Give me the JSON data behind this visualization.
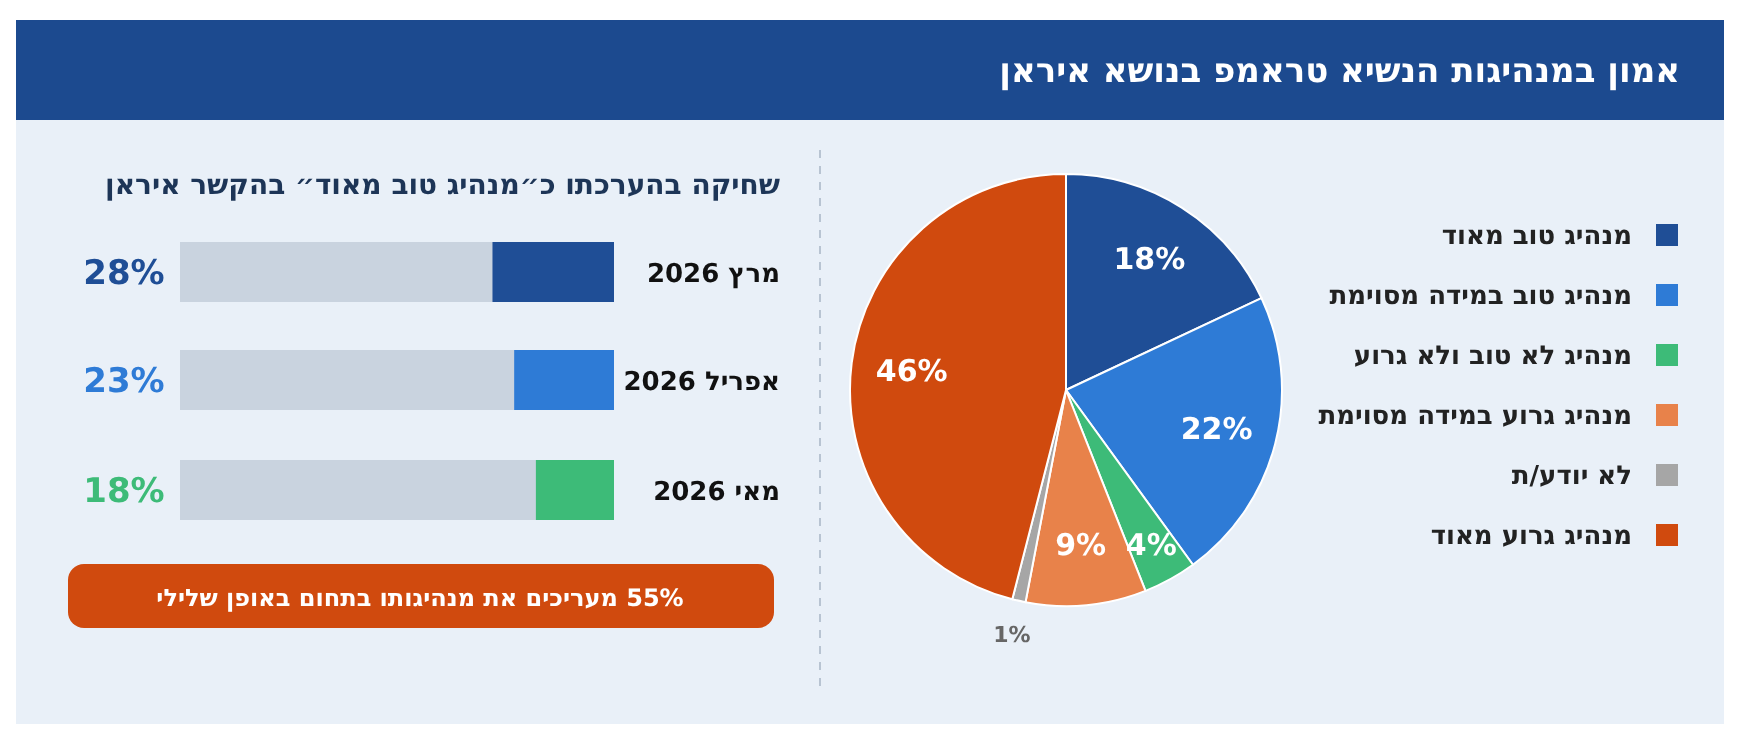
{
  "chart_data": [
    {
      "type": "bar",
      "orientation": "horizontal",
      "title": "שחיקה בהערכתו כ״מנהיג טוב מאוד״ בהקשר איראן",
      "categories": [
        "מרץ 2026",
        "אפריל 2026",
        "מאי 2026"
      ],
      "values": [
        28,
        23,
        18
      ],
      "colors": [
        "#1f4e96",
        "#2e7bd6",
        "#3dbb78"
      ],
      "value_labels": [
        "28%",
        "23%",
        "18%"
      ],
      "xlim": [
        100,
        0
      ],
      "tick_labels": "y",
      "annotations": [
        "55% מעריכים את מנהיגותו בתחום באופן שלילי"
      ]
    },
    {
      "type": "pie",
      "title": "אמון במנהיגות הנשיא טראמפ בנושא איראן",
      "categories": [
        "מנהיג טוב מאוד",
        "מנהיג טוב במידה מסוימת",
        "מנהיג לא טוב ולא גרוע",
        "מנהיג גרוע במידה מסוימת",
        "לא יודע/ת",
        "מנהיג גרוע מאוד"
      ],
      "values": [
        18,
        22,
        4,
        9,
        1,
        46
      ],
      "colors": [
        "#1f4e96",
        "#2e7bd6",
        "#3dbb78",
        "#e8824a",
        "#a6a6a6",
        "#d04a0e"
      ],
      "value_labels": [
        "18%",
        "22%",
        "4%",
        "9%",
        "1%",
        "46%"
      ],
      "legend": "right"
    }
  ]
}
